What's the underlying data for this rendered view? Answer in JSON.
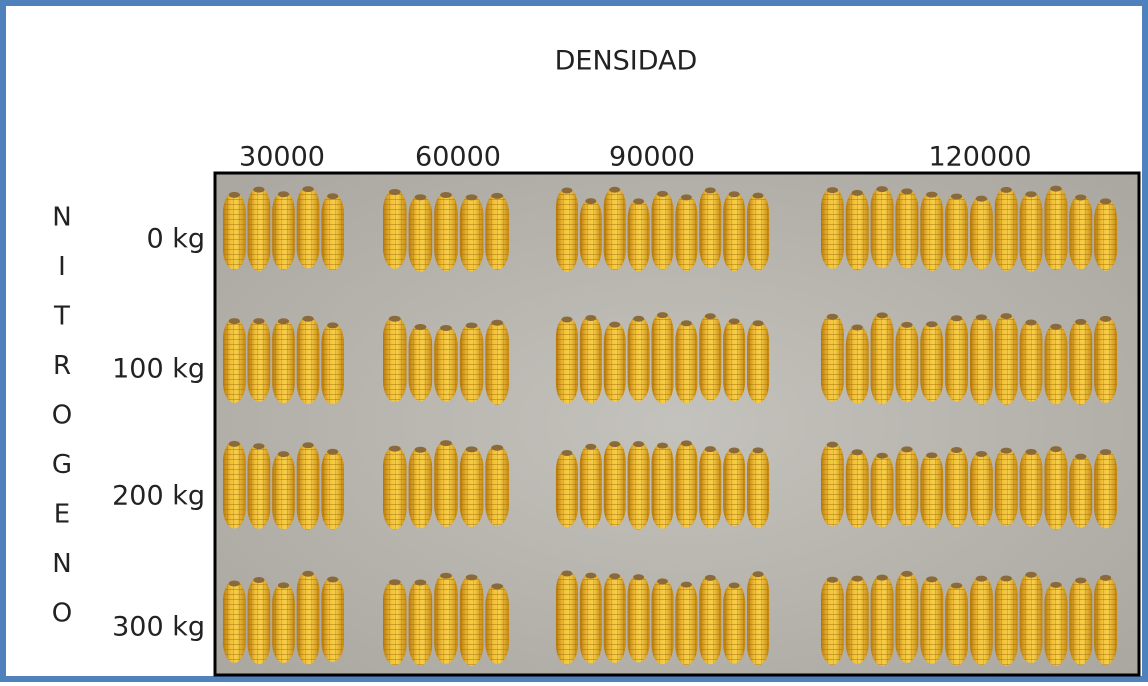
{
  "title": "DENSIDAD",
  "columns": [
    "30000",
    "60000",
    "90000",
    "120000"
  ],
  "row_axis_letters": [
    "N",
    "I",
    "T",
    "R",
    "O",
    "G",
    "E",
    "N",
    "O"
  ],
  "rows": [
    "0 kg",
    "100 kg",
    "200 kg",
    "300 kg"
  ]
}
